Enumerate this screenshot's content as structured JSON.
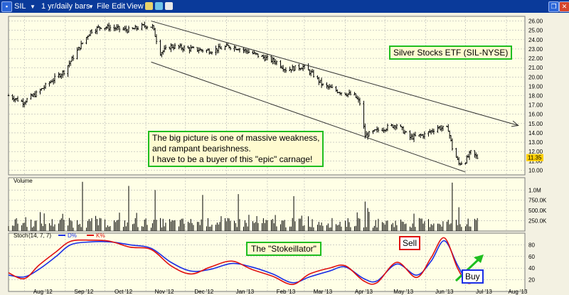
{
  "window": {
    "symbol": "SIL",
    "period": "1 yr/daily bars",
    "menu": [
      "File",
      "Edit",
      "View"
    ]
  },
  "colors": {
    "background": "#f3f1e2",
    "plot_background": "#ffffe6",
    "grid": "#b3b3b3",
    "titlebar": "#0a3a9a",
    "price_bars": "#000000",
    "last_price_tag": "#ffd000",
    "stoch_fast": "#1a2ee6",
    "stoch_slow": "#e01010",
    "annotation_green": "#1fbe1f",
    "annotation_red": "#e01010",
    "annotation_blue": "#1a2ee6"
  },
  "icons": [
    "dropdown-icon",
    "draw-tools-icon",
    "chart-settings-icon",
    "close-icon"
  ],
  "annotations": {
    "title": "Silver Stocks ETF (SIL-NYSE)",
    "big_picture": [
      "The big picture is one of massive weakness,",
      "and rampant bearishness.",
      "I have to be a buyer of this \"epic\" carnage!"
    ],
    "stokeillator": "The \"Stokeillator\"",
    "sell": "Sell",
    "buy": "Buy"
  },
  "chart_data": [
    {
      "type": "ohlc",
      "panel": "price",
      "x": [
        "Aug '12",
        "Sep '12",
        "Oct '12",
        "Nov '12",
        "Dec '12",
        "Jan '13",
        "Feb '13",
        "Mar '13",
        "Apr '13",
        "May '13",
        "Jun '13",
        "Jul '13",
        "Aug '13"
      ],
      "ylim": [
        9.5,
        26.5
      ],
      "yticks": [
        10.0,
        11.0,
        12.0,
        13.0,
        14.0,
        15.0,
        16.0,
        17.0,
        18.0,
        19.0,
        20.0,
        21.0,
        22.0,
        23.0,
        24.0,
        25.0,
        26.0
      ],
      "last_price": 11.35,
      "close_path": [
        [
          "2012-07-20",
          18.0
        ],
        [
          "2012-07-31",
          17.3
        ],
        [
          "2012-08-10",
          18.2
        ],
        [
          "2012-08-20",
          19.4
        ],
        [
          "2012-08-31",
          20.6
        ],
        [
          "2012-09-10",
          22.8
        ],
        [
          "2012-09-20",
          24.9
        ],
        [
          "2012-09-28",
          25.4
        ],
        [
          "2012-10-10",
          25.2
        ],
        [
          "2012-10-20",
          25.0
        ],
        [
          "2012-10-31",
          25.5
        ],
        [
          "2012-11-06",
          25.4
        ],
        [
          "2012-11-12",
          22.6
        ],
        [
          "2012-11-20",
          23.3
        ],
        [
          "2012-12-05",
          23.0
        ],
        [
          "2012-12-20",
          22.8
        ],
        [
          "2013-01-03",
          23.3
        ],
        [
          "2013-01-10",
          23.1
        ],
        [
          "2013-01-25",
          22.3
        ],
        [
          "2013-02-08",
          21.6
        ],
        [
          "2013-02-15",
          20.8
        ],
        [
          "2013-02-28",
          21.1
        ],
        [
          "2013-03-08",
          20.2
        ],
        [
          "2013-03-15",
          19.1
        ],
        [
          "2013-03-28",
          18.4
        ],
        [
          "2013-04-08",
          18.0
        ],
        [
          "2013-04-12",
          17.2
        ],
        [
          "2013-04-16",
          13.7
        ],
        [
          "2013-04-26",
          14.3
        ],
        [
          "2013-05-10",
          14.9
        ],
        [
          "2013-05-20",
          13.5
        ],
        [
          "2013-05-31",
          13.8
        ],
        [
          "2013-06-10",
          14.6
        ],
        [
          "2013-06-18",
          14.4
        ],
        [
          "2013-06-21",
          12.4
        ],
        [
          "2013-06-26",
          10.7
        ],
        [
          "2013-07-01",
          11.0
        ],
        [
          "2013-07-05",
          11.9
        ],
        [
          "2013-07-10",
          11.35
        ]
      ],
      "trendlines": [
        {
          "from": [
            "2012-11-05",
            26.0
          ],
          "to": [
            "2013-08-10",
            14.8
          ],
          "arrow": true
        },
        {
          "from": [
            "2012-11-05",
            21.6
          ],
          "to": [
            "2013-07-01",
            9.8
          ],
          "arrow": false
        }
      ]
    },
    {
      "type": "bar",
      "panel": "volume",
      "title": "Volume",
      "yticks": [
        250000,
        500000,
        750000,
        1000000
      ],
      "ytick_labels": [
        "250.0K",
        "500.0K",
        "750.0K",
        "1.0M"
      ],
      "ylim": [
        0,
        1300000
      ],
      "typical_range": [
        80000,
        480000
      ],
      "spikes": [
        [
          "2012-09-14",
          1200000
        ],
        [
          "2012-10-19",
          1100000
        ],
        [
          "2012-11-08",
          1000000
        ],
        [
          "2012-12-14",
          880000
        ],
        [
          "2013-01-10",
          900000
        ],
        [
          "2013-02-21",
          850000
        ],
        [
          "2013-04-16",
          720000
        ],
        [
          "2013-04-18",
          560000
        ],
        [
          "2013-06-21",
          1180000
        ],
        [
          "2013-06-26",
          580000
        ]
      ]
    },
    {
      "type": "line",
      "panel": "stochastic",
      "title": "Stoch",
      "params": "(14, 7, 7)",
      "legend": [
        "D%",
        "K%"
      ],
      "ylim": [
        0,
        100
      ],
      "yticks": [
        20,
        40,
        60,
        80
      ],
      "series": [
        {
          "name": "D%",
          "values": [
            [
              "2012-07-20",
              28
            ],
            [
              "2012-08-01",
              25
            ],
            [
              "2012-08-12",
              38
            ],
            [
              "2012-08-25",
              60
            ],
            [
              "2012-09-05",
              80
            ],
            [
              "2012-09-20",
              85
            ],
            [
              "2012-10-05",
              85
            ],
            [
              "2012-10-20",
              80
            ],
            [
              "2012-11-05",
              74
            ],
            [
              "2012-11-20",
              50
            ],
            [
              "2012-12-05",
              35
            ],
            [
              "2012-12-20",
              38
            ],
            [
              "2013-01-05",
              48
            ],
            [
              "2013-01-20",
              42
            ],
            [
              "2013-02-05",
              30
            ],
            [
              "2013-02-20",
              15
            ],
            [
              "2013-03-05",
              25
            ],
            [
              "2013-03-20",
              35
            ],
            [
              "2013-04-01",
              42
            ],
            [
              "2013-04-15",
              22
            ],
            [
              "2013-04-25",
              18
            ],
            [
              "2013-05-10",
              47
            ],
            [
              "2013-05-25",
              28
            ],
            [
              "2013-06-05",
              52
            ],
            [
              "2013-06-15",
              87
            ],
            [
              "2013-06-25",
              45
            ],
            [
              "2013-07-03",
              17
            ],
            [
              "2013-07-12",
              22
            ]
          ]
        },
        {
          "name": "K%",
          "values": [
            [
              "2012-07-20",
              32
            ],
            [
              "2012-08-01",
              22
            ],
            [
              "2012-08-12",
              45
            ],
            [
              "2012-08-25",
              68
            ],
            [
              "2012-09-05",
              86
            ],
            [
              "2012-09-20",
              88
            ],
            [
              "2012-10-05",
              86
            ],
            [
              "2012-10-20",
              76
            ],
            [
              "2012-11-05",
              72
            ],
            [
              "2012-11-20",
              44
            ],
            [
              "2012-12-05",
              30
            ],
            [
              "2012-12-20",
              42
            ],
            [
              "2013-01-05",
              52
            ],
            [
              "2013-01-20",
              38
            ],
            [
              "2013-02-05",
              26
            ],
            [
              "2013-02-20",
              12
            ],
            [
              "2013-03-05",
              30
            ],
            [
              "2013-03-20",
              40
            ],
            [
              "2013-04-01",
              44
            ],
            [
              "2013-04-15",
              18
            ],
            [
              "2013-04-25",
              15
            ],
            [
              "2013-05-10",
              50
            ],
            [
              "2013-05-25",
              24
            ],
            [
              "2013-06-05",
              58
            ],
            [
              "2013-06-15",
              92
            ],
            [
              "2013-06-25",
              40
            ],
            [
              "2013-07-03",
              14
            ],
            [
              "2013-07-12",
              26
            ]
          ]
        }
      ]
    }
  ]
}
